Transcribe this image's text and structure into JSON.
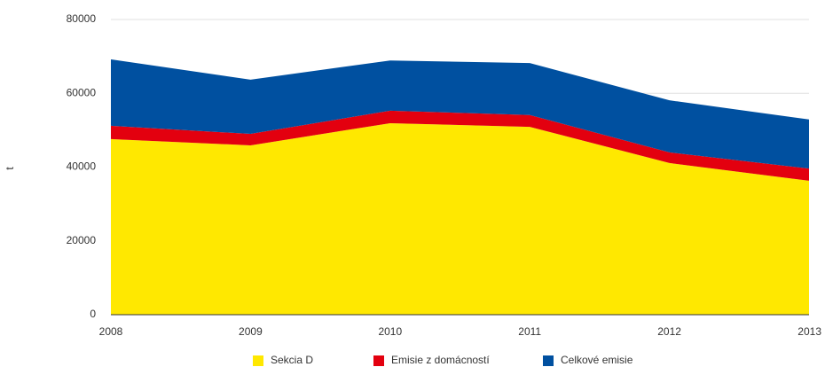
{
  "chart_data": {
    "type": "stacked_area",
    "y_label": "t",
    "categories": [
      "2008",
      "2009",
      "2010",
      "2011",
      "2012",
      "2013"
    ],
    "series": [
      {
        "name": "Sekcia D",
        "color": "#ffe800",
        "values": [
          47600,
          45900,
          51900,
          50900,
          41100,
          36300
        ]
      },
      {
        "name": "Emisie z domácností",
        "color": "#e3000f",
        "values": [
          3600,
          3100,
          3400,
          3200,
          2900,
          3300
        ]
      },
      {
        "name": "Celkové emisie",
        "color": "#0050a0",
        "values": [
          18000,
          14700,
          13600,
          14100,
          14100,
          13300
        ]
      }
    ],
    "ylim": [
      0,
      80000
    ],
    "yticks": [
      0,
      20000,
      40000,
      60000,
      80000
    ],
    "grid": true,
    "legend": "bottom"
  }
}
